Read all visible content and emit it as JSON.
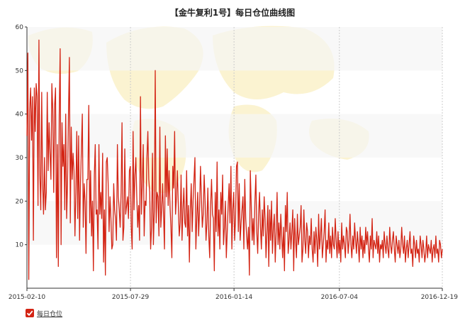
{
  "chart_data": {
    "type": "line",
    "title": "【金牛复利1号】每日仓位曲线图",
    "xlabel": "",
    "ylabel": "",
    "x_ticks": [
      "2015-02-10",
      "2015-07-29",
      "2016-01-14",
      "2016-07-04",
      "2016-12-19"
    ],
    "y_ticks": [
      10,
      20,
      30,
      40,
      50,
      60
    ],
    "xlim": [
      "2015-02-10",
      "2016-12-19"
    ],
    "ylim": [
      0,
      60
    ],
    "grid": true,
    "legend_position": "bottom-left",
    "series": [
      {
        "name": "每日仓位",
        "color": "#d32414",
        "x_start": "2015-02-10",
        "x_end": "2016-12-19",
        "values": [
          35,
          54,
          2,
          41,
          46,
          34,
          44,
          11,
          46,
          36,
          47,
          44,
          19,
          57,
          26,
          18,
          45,
          24,
          17,
          30,
          18,
          22,
          45,
          27,
          38,
          31,
          25,
          47,
          41,
          22,
          42,
          46,
          7,
          33,
          5,
          40,
          55,
          10,
          38,
          28,
          33,
          18,
          40,
          16,
          24,
          40,
          53,
          15,
          37,
          25,
          31,
          27,
          12,
          22,
          36,
          16,
          35,
          11,
          24,
          32,
          40,
          14,
          24,
          20,
          8,
          25,
          25,
          42,
          15,
          27,
          12,
          20,
          4,
          26,
          33,
          17,
          18,
          9,
          33,
          17,
          22,
          16,
          31,
          6,
          18,
          3,
          29,
          30,
          24,
          13,
          21,
          16,
          9,
          10,
          24,
          18,
          16,
          11,
          33,
          21,
          18,
          14,
          22,
          38,
          11,
          14,
          32,
          17,
          19,
          21,
          16,
          27,
          28,
          14,
          9,
          36,
          18,
          26,
          30,
          21,
          14,
          19,
          11,
          44,
          17,
          24,
          33,
          12,
          20,
          19,
          30,
          36,
          25,
          22,
          9,
          14,
          31,
          10,
          18,
          50,
          15,
          22,
          21,
          12,
          37,
          14,
          18,
          24,
          17,
          9,
          35,
          21,
          32,
          19,
          27,
          19,
          14,
          7,
          28,
          23,
          36,
          17,
          21,
          27,
          19,
          12,
          15,
          26,
          11,
          18,
          23,
          15,
          14,
          27,
          12,
          19,
          6,
          18,
          24,
          13,
          20,
          25,
          30,
          9,
          16,
          22,
          12,
          18,
          28,
          21,
          14,
          17,
          26,
          20,
          11,
          15,
          23,
          12,
          7,
          19,
          25,
          17,
          16,
          4,
          22,
          13,
          29,
          12,
          18,
          9,
          22,
          17,
          26,
          10,
          14,
          20,
          7,
          13,
          19,
          24,
          15,
          28,
          9,
          18,
          22,
          11,
          16,
          28,
          29,
          13,
          24,
          11,
          15,
          18,
          21,
          9,
          25,
          16,
          12,
          9,
          14,
          3,
          27,
          19,
          11,
          16,
          10,
          20,
          26,
          13,
          8,
          17,
          22,
          14,
          9,
          18,
          12,
          21,
          16,
          7,
          13,
          19,
          5,
          18,
          11,
          20,
          8,
          14,
          17,
          6,
          13,
          22,
          10,
          15,
          9,
          17,
          12,
          7,
          14,
          4,
          19,
          13,
          22,
          8,
          11,
          15,
          9,
          13,
          18,
          4,
          16,
          11,
          7,
          17,
          10,
          12,
          14,
          19,
          6,
          9,
          18,
          11,
          8,
          15,
          13,
          7,
          12,
          10,
          16,
          9,
          6,
          13,
          8,
          14,
          11,
          5,
          17,
          9,
          12,
          16,
          7,
          10,
          13,
          18,
          6,
          11,
          9,
          15,
          8,
          12,
          7,
          14,
          10,
          9,
          16,
          11,
          7,
          13,
          8,
          11,
          6,
          15,
          9,
          12,
          10,
          7,
          14,
          13,
          8,
          11,
          17,
          10,
          7,
          12,
          9,
          15,
          11,
          8,
          13,
          10,
          6,
          14,
          9,
          12,
          7,
          11,
          8,
          14,
          10,
          13,
          9,
          6,
          12,
          9,
          16,
          7,
          11,
          10,
          9,
          13,
          8,
          12,
          6,
          10,
          9,
          11,
          7,
          13,
          10,
          8,
          12,
          9,
          7,
          14,
          10,
          8,
          11,
          13,
          9,
          6,
          12,
          10,
          8,
          11,
          7,
          9,
          14,
          10,
          8,
          12,
          6,
          9,
          11,
          7,
          10,
          13,
          8,
          9,
          5,
          12,
          10,
          7,
          11,
          8,
          9,
          6,
          12,
          10,
          7,
          11,
          9,
          6,
          8,
          12,
          7,
          10,
          9,
          8,
          11,
          6,
          9,
          10,
          7,
          12,
          8,
          9,
          6,
          11,
          10,
          7,
          9
        ]
      }
    ]
  },
  "legend": {
    "label": "每日仓位",
    "checked": true
  }
}
